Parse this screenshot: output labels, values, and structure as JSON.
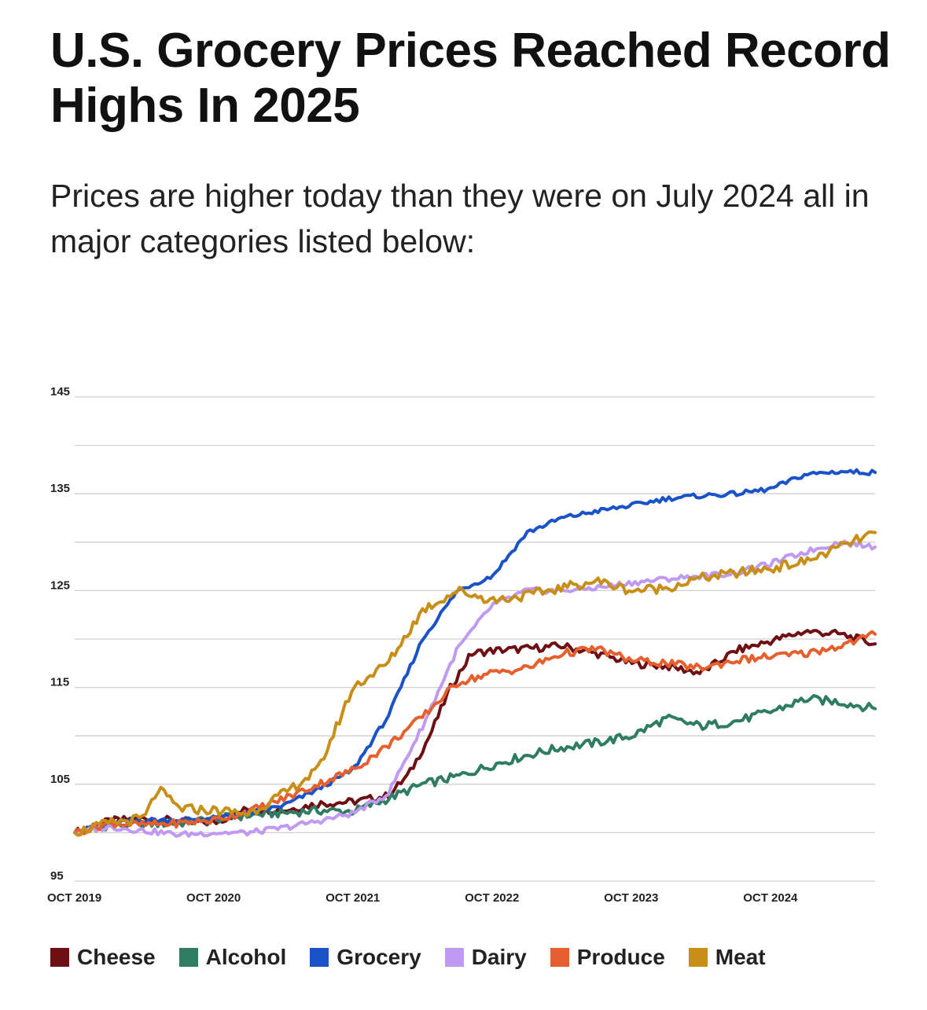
{
  "header": {
    "title": "U.S. Grocery Prices Reached Record Highs In 2025",
    "subtitle": "Prices are higher today than they were on July 2024 all in major categories listed below:"
  },
  "chart_data": {
    "type": "line",
    "title": "U.S. Grocery Prices Reached Record Highs In 2025",
    "xlabel": "",
    "ylabel": "",
    "ylim": [
      95,
      145
    ],
    "y_ticks": [
      95,
      105,
      115,
      125,
      135,
      145
    ],
    "y_gridlines": [
      95,
      100,
      105,
      110,
      115,
      120,
      125,
      130,
      135,
      140,
      145
    ],
    "x_range": [
      2019.75,
      2025.5
    ],
    "x_ticks": [
      {
        "x": 2019.75,
        "label": "OCT 2019"
      },
      {
        "x": 2020.75,
        "label": "OCT 2020"
      },
      {
        "x": 2021.75,
        "label": "OCT 2021"
      },
      {
        "x": 2022.75,
        "label": "OCT 2022"
      },
      {
        "x": 2023.75,
        "label": "OCT 2023"
      },
      {
        "x": 2024.75,
        "label": "OCT 2024"
      }
    ],
    "grid": true,
    "legend_position": "bottom",
    "series": [
      {
        "name": "Cheese",
        "color": "#6e0f14",
        "points": [
          [
            2019.75,
            100
          ],
          [
            2020.0,
            101.2
          ],
          [
            2020.25,
            101.5
          ],
          [
            2020.5,
            101.2
          ],
          [
            2020.75,
            101
          ],
          [
            2021.0,
            102.5
          ],
          [
            2021.25,
            102.3
          ],
          [
            2021.5,
            103
          ],
          [
            2021.75,
            103.2
          ],
          [
            2022.0,
            103.8
          ],
          [
            2022.15,
            106
          ],
          [
            2022.3,
            110
          ],
          [
            2022.45,
            115
          ],
          [
            2022.6,
            118.5
          ],
          [
            2022.75,
            118.8
          ],
          [
            2023.0,
            119
          ],
          [
            2023.25,
            119.3
          ],
          [
            2023.5,
            118.5
          ],
          [
            2023.75,
            117.5
          ],
          [
            2024.0,
            117.2
          ],
          [
            2024.25,
            116.5
          ],
          [
            2024.5,
            118.8
          ],
          [
            2024.75,
            119.8
          ],
          [
            2025.0,
            120.8
          ],
          [
            2025.25,
            120.5
          ],
          [
            2025.5,
            119.5
          ]
        ]
      },
      {
        "name": "Alcohol",
        "color": "#2e7d63",
        "points": [
          [
            2019.75,
            100
          ],
          [
            2020.0,
            100.8
          ],
          [
            2020.5,
            101
          ],
          [
            2021.0,
            101.8
          ],
          [
            2021.5,
            102.3
          ],
          [
            2021.75,
            102.2
          ],
          [
            2022.0,
            103.5
          ],
          [
            2022.25,
            105
          ],
          [
            2022.5,
            105.8
          ],
          [
            2022.75,
            107
          ],
          [
            2023.0,
            108
          ],
          [
            2023.25,
            108.8
          ],
          [
            2023.5,
            109.3
          ],
          [
            2023.75,
            110
          ],
          [
            2024.0,
            111.8
          ],
          [
            2024.25,
            111
          ],
          [
            2024.5,
            111.5
          ],
          [
            2024.75,
            112.5
          ],
          [
            2025.0,
            113.8
          ],
          [
            2025.25,
            113.5
          ],
          [
            2025.5,
            112.8
          ]
        ]
      },
      {
        "name": "Grocery",
        "color": "#1a52c8",
        "points": [
          [
            2019.75,
            100
          ],
          [
            2020.0,
            101
          ],
          [
            2020.25,
            101.3
          ],
          [
            2020.5,
            101.3
          ],
          [
            2020.75,
            101.5
          ],
          [
            2021.0,
            102
          ],
          [
            2021.25,
            102.8
          ],
          [
            2021.5,
            104.5
          ],
          [
            2021.75,
            106.5
          ],
          [
            2022.0,
            112
          ],
          [
            2022.25,
            120
          ],
          [
            2022.5,
            125
          ],
          [
            2022.75,
            126.5
          ],
          [
            2023.0,
            131
          ],
          [
            2023.25,
            132.5
          ],
          [
            2023.5,
            133.2
          ],
          [
            2023.75,
            133.8
          ],
          [
            2024.0,
            134.5
          ],
          [
            2024.25,
            134.8
          ],
          [
            2024.5,
            135
          ],
          [
            2024.75,
            135.5
          ],
          [
            2025.0,
            137
          ],
          [
            2025.25,
            137.3
          ],
          [
            2025.5,
            137.2
          ]
        ]
      },
      {
        "name": "Dairy",
        "color": "#bf99f2",
        "points": [
          [
            2019.75,
            100
          ],
          [
            2020.0,
            100.6
          ],
          [
            2020.25,
            100.2
          ],
          [
            2020.5,
            99.8
          ],
          [
            2020.75,
            100
          ],
          [
            2021.0,
            100
          ],
          [
            2021.25,
            100.5
          ],
          [
            2021.5,
            101.2
          ],
          [
            2021.75,
            102
          ],
          [
            2022.0,
            104
          ],
          [
            2022.25,
            111
          ],
          [
            2022.5,
            119
          ],
          [
            2022.75,
            123.5
          ],
          [
            2023.0,
            125
          ],
          [
            2023.25,
            125
          ],
          [
            2023.5,
            125.3
          ],
          [
            2023.75,
            125.8
          ],
          [
            2024.0,
            126.2
          ],
          [
            2024.25,
            126.5
          ],
          [
            2024.5,
            126.8
          ],
          [
            2024.75,
            127.8
          ],
          [
            2025.0,
            129
          ],
          [
            2025.25,
            130
          ],
          [
            2025.5,
            129.5
          ]
        ]
      },
      {
        "name": "Produce",
        "color": "#e5602e",
        "points": [
          [
            2019.75,
            100
          ],
          [
            2020.0,
            101
          ],
          [
            2020.25,
            100.8
          ],
          [
            2020.5,
            101
          ],
          [
            2020.75,
            101.3
          ],
          [
            2021.0,
            102.2
          ],
          [
            2021.25,
            103.5
          ],
          [
            2021.5,
            105
          ],
          [
            2021.75,
            106.5
          ],
          [
            2022.0,
            109
          ],
          [
            2022.25,
            112
          ],
          [
            2022.5,
            115.5
          ],
          [
            2022.75,
            116.5
          ],
          [
            2023.0,
            117
          ],
          [
            2023.25,
            118.5
          ],
          [
            2023.5,
            119
          ],
          [
            2023.75,
            117.8
          ],
          [
            2024.0,
            117.5
          ],
          [
            2024.25,
            117
          ],
          [
            2024.5,
            117.8
          ],
          [
            2024.75,
            118.2
          ],
          [
            2025.0,
            118.5
          ],
          [
            2025.25,
            119.3
          ],
          [
            2025.5,
            120.5
          ]
        ]
      },
      {
        "name": "Meat",
        "color": "#c78f17",
        "points": [
          [
            2019.75,
            100
          ],
          [
            2020.0,
            101
          ],
          [
            2020.25,
            101.5
          ],
          [
            2020.35,
            104.5
          ],
          [
            2020.5,
            102.5
          ],
          [
            2020.75,
            102.3
          ],
          [
            2021.0,
            102
          ],
          [
            2021.25,
            104
          ],
          [
            2021.5,
            106.5
          ],
          [
            2021.75,
            115
          ],
          [
            2022.0,
            117.5
          ],
          [
            2022.25,
            123
          ],
          [
            2022.5,
            125
          ],
          [
            2022.75,
            124
          ],
          [
            2023.0,
            124.5
          ],
          [
            2023.25,
            125.3
          ],
          [
            2023.5,
            126
          ],
          [
            2023.75,
            125
          ],
          [
            2024.0,
            125.3
          ],
          [
            2024.25,
            126.3
          ],
          [
            2024.5,
            126.8
          ],
          [
            2024.75,
            127.3
          ],
          [
            2025.0,
            128
          ],
          [
            2025.25,
            129.5
          ],
          [
            2025.5,
            131
          ]
        ]
      }
    ]
  },
  "legend": {
    "items": [
      {
        "label": "Cheese",
        "color": "#6e0f14"
      },
      {
        "label": "Alcohol",
        "color": "#2e7d63"
      },
      {
        "label": "Grocery",
        "color": "#1a52c8"
      },
      {
        "label": "Dairy",
        "color": "#bf99f2"
      },
      {
        "label": "Produce",
        "color": "#e5602e"
      },
      {
        "label": "Meat",
        "color": "#c78f17"
      }
    ]
  }
}
